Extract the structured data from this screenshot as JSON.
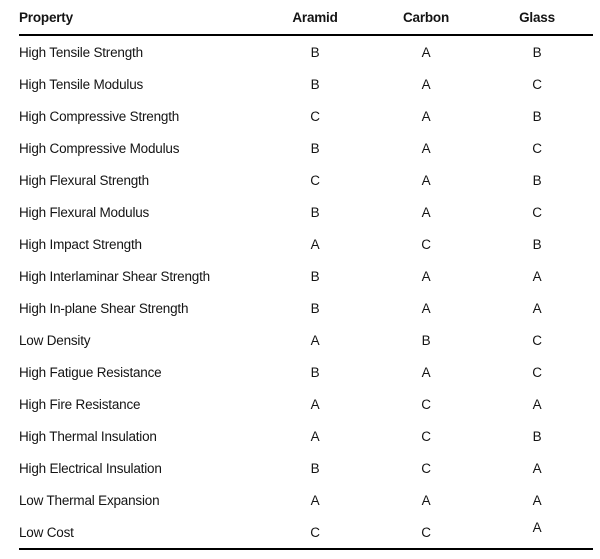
{
  "table": {
    "columns": [
      {
        "key": "property",
        "label": "Property"
      },
      {
        "key": "aramid",
        "label": "Aramid"
      },
      {
        "key": "carbon",
        "label": "Carbon"
      },
      {
        "key": "glass",
        "label": "Glass"
      }
    ],
    "rows": [
      {
        "property": "High Tensile Strength",
        "aramid": "B",
        "carbon": "A",
        "glass": "B"
      },
      {
        "property": "High Tensile Modulus",
        "aramid": "B",
        "carbon": "A",
        "glass": "C"
      },
      {
        "property": "High Compressive Strength",
        "aramid": "C",
        "carbon": "A",
        "glass": "B"
      },
      {
        "property": "High Compressive Modulus",
        "aramid": "B",
        "carbon": "A",
        "glass": "C"
      },
      {
        "property": "High Flexural Strength",
        "aramid": "C",
        "carbon": "A",
        "glass": "B"
      },
      {
        "property": "High Flexural Modulus",
        "aramid": "B",
        "carbon": "A",
        "glass": "C"
      },
      {
        "property": "High Impact Strength",
        "aramid": "A",
        "carbon": "C",
        "glass": "B"
      },
      {
        "property": "High Interlaminar Shear Strength",
        "aramid": "B",
        "carbon": "A",
        "glass": "A"
      },
      {
        "property": "High In-plane Shear Strength",
        "aramid": "B",
        "carbon": "A",
        "glass": "A"
      },
      {
        "property": "Low Density",
        "aramid": "A",
        "carbon": "B",
        "glass": "C"
      },
      {
        "property": "High Fatigue Resistance",
        "aramid": "B",
        "carbon": "A",
        "glass": "C"
      },
      {
        "property": "High Fire Resistance",
        "aramid": "A",
        "carbon": "C",
        "glass": "A"
      },
      {
        "property": "High Thermal Insulation",
        "aramid": "A",
        "carbon": "C",
        "glass": "B"
      },
      {
        "property": "High Electrical Insulation",
        "aramid": "B",
        "carbon": "C",
        "glass": "A"
      },
      {
        "property": "Low Thermal Expansion",
        "aramid": "A",
        "carbon": "A",
        "glass": "A"
      },
      {
        "property": "Low Cost",
        "aramid": "C",
        "carbon": "C",
        "glass": "A"
      }
    ]
  },
  "colors": {
    "text": "#141414",
    "rule": "#000000",
    "background": "#ffffff"
  }
}
